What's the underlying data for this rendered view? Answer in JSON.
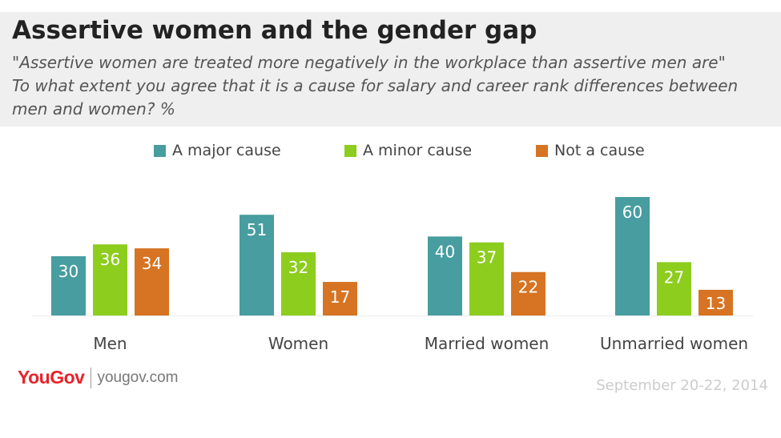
{
  "header": {
    "title": "Assertive women and the gender gap",
    "subtitle_lines": [
      "\"Assertive women are treated more negatively in the workplace than assertive men are\"",
      "To what extent you agree that it is a cause for salary and career rank differences between",
      "men and women? %"
    ]
  },
  "chart_data": {
    "type": "bar",
    "categories": [
      "Men",
      "Women",
      "Married women",
      "Unmarried women"
    ],
    "series": [
      {
        "name": "A major cause",
        "color": "#479d9f",
        "values": [
          30,
          51,
          40,
          60
        ]
      },
      {
        "name": "A minor cause",
        "color": "#8ccd1d",
        "values": [
          36,
          32,
          37,
          27
        ]
      },
      {
        "name": "Not a cause",
        "color": "#d67423",
        "values": [
          34,
          17,
          22,
          13
        ]
      }
    ],
    "title": "Assertive women and the gender gap",
    "xlabel": "",
    "ylabel": "",
    "ylim": [
      0,
      60
    ],
    "grid": false,
    "legend_position": "top"
  },
  "footer": {
    "logo_text": "YouGov",
    "url": "yougov.com",
    "date": "September 20-22, 2014"
  }
}
